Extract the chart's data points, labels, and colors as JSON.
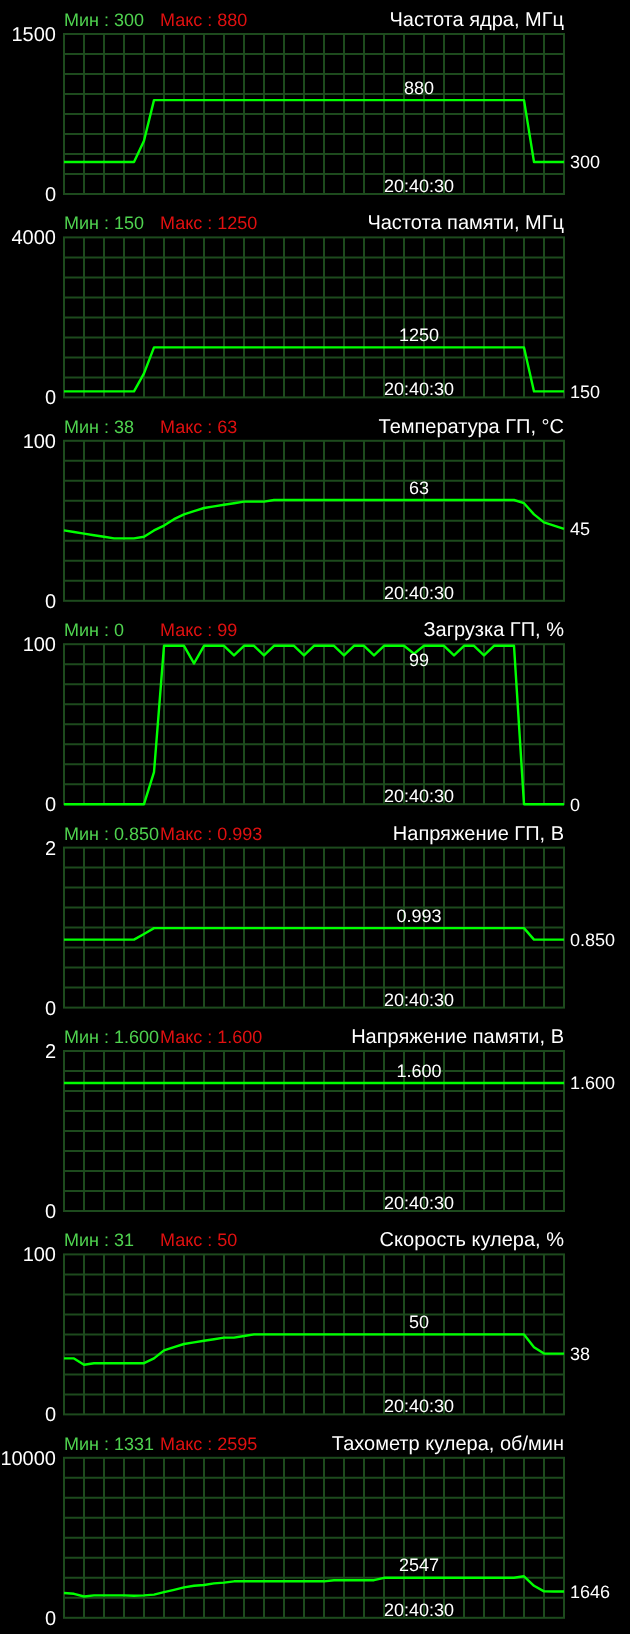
{
  "chart_data": [
    {
      "type": "line",
      "title": "Частота ядра, МГц",
      "ylim": [
        0,
        1500
      ],
      "yticks": [
        0,
        1500
      ],
      "grid": true,
      "tick_labels": "y",
      "categories": [
        null,
        null,
        null,
        null,
        null,
        null,
        null,
        null,
        null,
        null,
        null,
        null,
        null,
        null,
        null,
        null,
        null,
        null,
        null,
        null,
        null,
        null,
        null,
        null,
        null,
        null,
        null,
        null,
        null,
        null,
        null,
        null,
        null,
        null,
        null,
        null,
        null,
        null,
        null,
        null,
        null,
        null,
        null,
        null,
        null,
        null,
        null,
        null,
        null,
        null,
        null
      ],
      "series": [
        {
          "color": "#00ff00",
          "values": [
            300,
            300,
            300,
            300,
            300,
            300,
            300,
            300,
            500,
            880,
            880,
            880,
            880,
            880,
            880,
            880,
            880,
            880,
            880,
            880,
            880,
            880,
            880,
            880,
            880,
            880,
            880,
            880,
            880,
            880,
            880,
            880,
            880,
            880,
            880,
            880,
            880,
            880,
            880,
            880,
            880,
            880,
            880,
            880,
            880,
            880,
            880,
            300,
            300,
            300,
            300
          ]
        }
      ],
      "annotations": [
        "Мин : 300",
        "Макс : 880",
        {
          "text": "880",
          "y": 880
        },
        "300",
        "20:40:30"
      ]
    },
    {
      "type": "line",
      "title": "Частота памяти, МГц",
      "ylim": [
        0,
        4000
      ],
      "yticks": [
        0,
        4000
      ],
      "grid": true,
      "tick_labels": "y",
      "categories": [
        null,
        null,
        null,
        null,
        null,
        null,
        null,
        null,
        null,
        null,
        null,
        null,
        null,
        null,
        null,
        null,
        null,
        null,
        null,
        null,
        null,
        null,
        null,
        null,
        null,
        null,
        null,
        null,
        null,
        null,
        null,
        null,
        null,
        null,
        null,
        null,
        null,
        null,
        null,
        null,
        null,
        null,
        null,
        null,
        null,
        null,
        null,
        null,
        null,
        null,
        null
      ],
      "series": [
        {
          "color": "#00ff00",
          "values": [
            150,
            150,
            150,
            150,
            150,
            150,
            150,
            150,
            600,
            1250,
            1250,
            1250,
            1250,
            1250,
            1250,
            1250,
            1250,
            1250,
            1250,
            1250,
            1250,
            1250,
            1250,
            1250,
            1250,
            1250,
            1250,
            1250,
            1250,
            1250,
            1250,
            1250,
            1250,
            1250,
            1250,
            1250,
            1250,
            1250,
            1250,
            1250,
            1250,
            1250,
            1250,
            1250,
            1250,
            1250,
            1250,
            150,
            150,
            150,
            150
          ]
        }
      ],
      "annotations": [
        "Мин : 150",
        "Макс : 1250",
        {
          "text": "1250",
          "y": 1250
        },
        "150",
        "20:40:30"
      ]
    },
    {
      "type": "line",
      "title": "Температура ГП, °C",
      "ylim": [
        0,
        100
      ],
      "yticks": [
        0,
        100
      ],
      "grid": true,
      "tick_labels": "y",
      "categories": [
        null,
        null,
        null,
        null,
        null,
        null,
        null,
        null,
        null,
        null,
        null,
        null,
        null,
        null,
        null,
        null,
        null,
        null,
        null,
        null,
        null,
        null,
        null,
        null,
        null,
        null,
        null,
        null,
        null,
        null,
        null,
        null,
        null,
        null,
        null,
        null,
        null,
        null,
        null,
        null,
        null,
        null,
        null,
        null,
        null,
        null,
        null,
        null,
        null,
        null,
        null
      ],
      "series": [
        {
          "color": "#00ff00",
          "values": [
            44,
            43,
            42,
            41,
            40,
            39,
            39,
            39,
            40,
            44,
            47,
            51,
            54,
            56,
            58,
            59,
            60,
            61,
            62,
            62,
            62,
            63,
            63,
            63,
            63,
            63,
            63,
            63,
            63,
            63,
            63,
            63,
            63,
            63,
            63,
            63,
            63,
            63,
            63,
            63,
            63,
            63,
            63,
            63,
            63,
            63,
            61,
            54,
            49,
            47,
            45
          ]
        }
      ],
      "annotations": [
        "Мин : 38",
        "Макс : 63",
        {
          "text": "63",
          "y": 63
        },
        "45",
        "20:40:30"
      ]
    },
    {
      "type": "line",
      "title": "Загрузка ГП, %",
      "ylim": [
        0,
        100
      ],
      "yticks": [
        0,
        100
      ],
      "grid": true,
      "tick_labels": "y",
      "categories": [
        null,
        null,
        null,
        null,
        null,
        null,
        null,
        null,
        null,
        null,
        null,
        null,
        null,
        null,
        null,
        null,
        null,
        null,
        null,
        null,
        null,
        null,
        null,
        null,
        null,
        null,
        null,
        null,
        null,
        null,
        null,
        null,
        null,
        null,
        null,
        null,
        null,
        null,
        null,
        null,
        null,
        null,
        null,
        null,
        null,
        null,
        null,
        null,
        null,
        null,
        null
      ],
      "series": [
        {
          "color": "#00ff00",
          "values": [
            0,
            0,
            0,
            0,
            0,
            0,
            0,
            0,
            0,
            20,
            99,
            99,
            99,
            88,
            99,
            99,
            99,
            93,
            99,
            99,
            93,
            99,
            99,
            99,
            93,
            99,
            99,
            99,
            93,
            99,
            99,
            93,
            99,
            99,
            99,
            94,
            99,
            99,
            99,
            93,
            99,
            99,
            93,
            99,
            99,
            99,
            0,
            0,
            0,
            0,
            0
          ]
        }
      ],
      "annotations": [
        "Мин : 0",
        "Макс : 99",
        {
          "text": "99",
          "y": 99
        },
        "0",
        "20:40:30"
      ]
    },
    {
      "type": "line",
      "title": "Напряжение ГП, В",
      "ylim": [
        0,
        2
      ],
      "yticks": [
        0,
        2
      ],
      "grid": true,
      "tick_labels": "y",
      "categories": [
        null,
        null,
        null,
        null,
        null,
        null,
        null,
        null,
        null,
        null,
        null,
        null,
        null,
        null,
        null,
        null,
        null,
        null,
        null,
        null,
        null,
        null,
        null,
        null,
        null,
        null,
        null,
        null,
        null,
        null,
        null,
        null,
        null,
        null,
        null,
        null,
        null,
        null,
        null,
        null,
        null,
        null,
        null,
        null,
        null,
        null,
        null,
        null,
        null,
        null,
        null
      ],
      "series": [
        {
          "color": "#00ff00",
          "values": [
            0.85,
            0.85,
            0.85,
            0.85,
            0.85,
            0.85,
            0.85,
            0.85,
            0.92,
            0.993,
            0.993,
            0.993,
            0.993,
            0.993,
            0.993,
            0.993,
            0.993,
            0.993,
            0.993,
            0.993,
            0.993,
            0.993,
            0.993,
            0.993,
            0.993,
            0.993,
            0.993,
            0.993,
            0.993,
            0.993,
            0.993,
            0.993,
            0.993,
            0.993,
            0.993,
            0.993,
            0.993,
            0.993,
            0.993,
            0.993,
            0.993,
            0.993,
            0.993,
            0.993,
            0.993,
            0.993,
            0.993,
            0.85,
            0.85,
            0.85,
            0.85
          ]
        }
      ],
      "annotations": [
        "Мин : 0.850",
        "Макс : 0.993",
        {
          "text": "0.993",
          "y": 0.993
        },
        "0.850",
        "20:40:30"
      ]
    },
    {
      "type": "line",
      "title": "Напряжение памяти, В",
      "ylim": [
        0,
        2
      ],
      "yticks": [
        0,
        2
      ],
      "grid": true,
      "tick_labels": "y",
      "categories": [
        null,
        null,
        null,
        null,
        null,
        null,
        null,
        null,
        null,
        null,
        null,
        null,
        null,
        null,
        null,
        null,
        null,
        null,
        null,
        null,
        null,
        null,
        null,
        null,
        null,
        null,
        null,
        null,
        null,
        null,
        null,
        null,
        null,
        null,
        null,
        null,
        null,
        null,
        null,
        null,
        null,
        null,
        null,
        null,
        null,
        null,
        null,
        null,
        null,
        null,
        null
      ],
      "series": [
        {
          "color": "#00ff00",
          "values": [
            1.6,
            1.6,
            1.6,
            1.6,
            1.6,
            1.6,
            1.6,
            1.6,
            1.6,
            1.6,
            1.6,
            1.6,
            1.6,
            1.6,
            1.6,
            1.6,
            1.6,
            1.6,
            1.6,
            1.6,
            1.6,
            1.6,
            1.6,
            1.6,
            1.6,
            1.6,
            1.6,
            1.6,
            1.6,
            1.6,
            1.6,
            1.6,
            1.6,
            1.6,
            1.6,
            1.6,
            1.6,
            1.6,
            1.6,
            1.6,
            1.6,
            1.6,
            1.6,
            1.6,
            1.6,
            1.6,
            1.6,
            1.6,
            1.6,
            1.6,
            1.6
          ]
        }
      ],
      "annotations": [
        "Мин : 1.600",
        "Макс : 1.600",
        "1.600",
        "1.600",
        "20:40:30"
      ]
    },
    {
      "type": "line",
      "title": "Скорость кулера, %",
      "ylim": [
        0,
        100
      ],
      "yticks": [
        0,
        100
      ],
      "grid": true,
      "tick_labels": "y",
      "categories": [
        null,
        null,
        null,
        null,
        null,
        null,
        null,
        null,
        null,
        null,
        null,
        null,
        null,
        null,
        null,
        null,
        null,
        null,
        null,
        null,
        null,
        null,
        null,
        null,
        null,
        null,
        null,
        null,
        null,
        null,
        null,
        null,
        null,
        null,
        null,
        null,
        null,
        null,
        null,
        null,
        null,
        null,
        null,
        null,
        null,
        null,
        null,
        null,
        null,
        null,
        null
      ],
      "series": [
        {
          "color": "#00ff00",
          "values": [
            35,
            35,
            31,
            32,
            32,
            32,
            32,
            32,
            32,
            35,
            40,
            42,
            44,
            45,
            46,
            47,
            48,
            48,
            49,
            50,
            50,
            50,
            50,
            50,
            50,
            50,
            50,
            50,
            50,
            50,
            50,
            50,
            50,
            50,
            50,
            50,
            50,
            50,
            50,
            50,
            50,
            50,
            50,
            50,
            50,
            50,
            50,
            42,
            38,
            38,
            38
          ]
        }
      ],
      "annotations": [
        "Мин : 31",
        "Макс : 50",
        {
          "text": "50",
          "y": 50
        },
        "38",
        "20:40:30"
      ]
    },
    {
      "type": "line",
      "title": "Тахометр кулера, об/мин",
      "ylim": [
        0,
        10000
      ],
      "yticks": [
        0,
        10000
      ],
      "grid": true,
      "tick_labels": "y",
      "categories": [
        null,
        null,
        null,
        null,
        null,
        null,
        null,
        null,
        null,
        null,
        null,
        null,
        null,
        null,
        null,
        null,
        null,
        null,
        null,
        null,
        null,
        null,
        null,
        null,
        null,
        null,
        null,
        null,
        null,
        null,
        null,
        null,
        null,
        null,
        null,
        null,
        null,
        null,
        null,
        null,
        null,
        null,
        null,
        null,
        null,
        null,
        null,
        null,
        null,
        null,
        null
      ],
      "series": [
        {
          "color": "#00ff00",
          "values": [
            1550,
            1500,
            1331,
            1400,
            1400,
            1400,
            1400,
            1380,
            1400,
            1450,
            1600,
            1750,
            1900,
            2000,
            2050,
            2150,
            2200,
            2280,
            2280,
            2280,
            2280,
            2280,
            2280,
            2280,
            2280,
            2280,
            2280,
            2350,
            2350,
            2350,
            2350,
            2350,
            2500,
            2500,
            2500,
            2500,
            2500,
            2500,
            2500,
            2500,
            2500,
            2500,
            2500,
            2500,
            2500,
            2500,
            2595,
            2000,
            1650,
            1646,
            1646
          ]
        }
      ],
      "annotations": [
        "Мин : 1331",
        "Макс : 2595",
        {
          "text": "2547",
          "y": 2547
        },
        "1646",
        "20:40:30"
      ]
    }
  ]
}
